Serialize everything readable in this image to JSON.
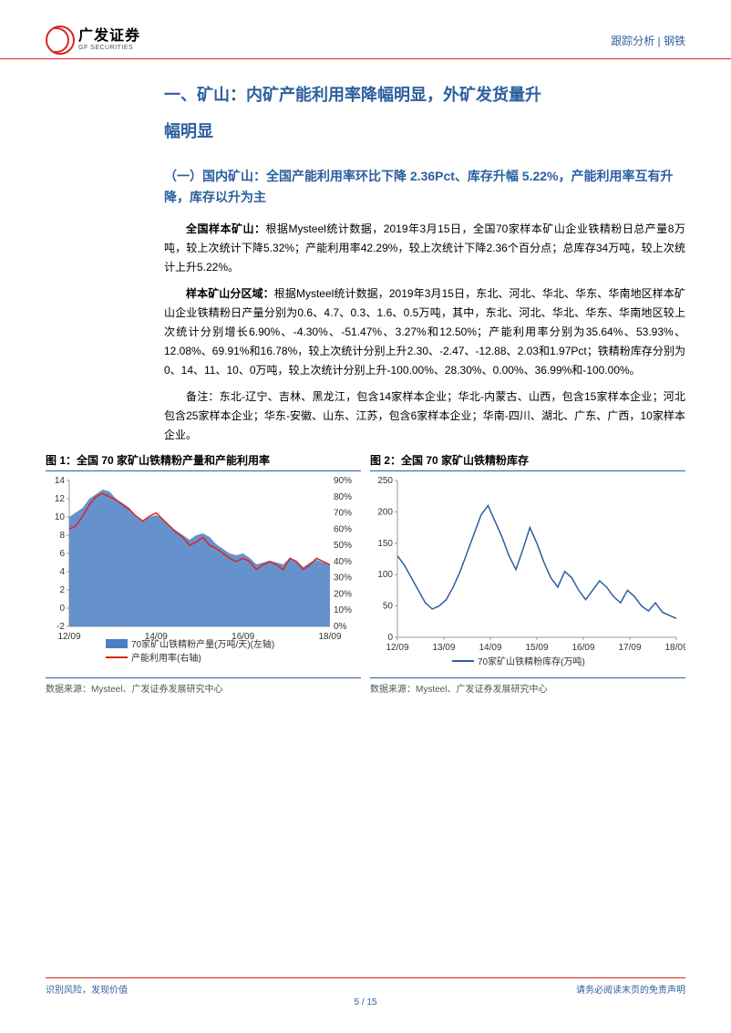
{
  "header": {
    "logo_cn": "广发证券",
    "logo_en": "GF SECURITIES",
    "right": "跟踪分析 | 钢铁"
  },
  "section_title_1": "一、矿山：内矿产能利用率降幅明显，外矿发货量升",
  "section_title_2": "幅明显",
  "subsection_title": "（一）国内矿山：全国产能利用率环比下降 2.36Pct、库存升幅 5.22%，产能利用率互有升降，库存以升为主",
  "para1_b": "全国样本矿山：",
  "para1": "根据Mysteel统计数据，2019年3月15日，全国70家样本矿山企业铁精粉日总产量8万吨，较上次统计下降5.32%；产能利用率42.29%，较上次统计下降2.36个百分点；总库存34万吨，较上次统计上升5.22%。",
  "para2_b": "样本矿山分区域：",
  "para2": "根据Mysteel统计数据，2019年3月15日，东北、河北、华北、华东、华南地区样本矿山企业铁精粉日产量分别为0.6、4.7、0.3、1.6、0.5万吨，其中，东北、河北、华北、华东、华南地区较上次统计分别增长6.90%、-4.30%、-51.47%、3.27%和12.50%；产能利用率分别为35.64%、53.93%、12.08%、69.91%和16.78%，较上次统计分别上升2.30、-2.47、-12.88、2.03和1.97Pct；铁精粉库存分别为0、14、11、10、0万吨，较上次统计分别上升-100.00%、28.30%、0.00%、36.99%和-100.00%。",
  "para3": "备注：东北-辽宁、吉林、黑龙江，包含14家样本企业；华北-内蒙古、山西，包含15家样本企业；河北包含25家样本企业；华东-安徽、山东、江苏，包含6家样本企业；华南-四川、湖北、广东、广西，10家样本企业。",
  "chart1": {
    "title": "图 1：全国 70 家矿山铁精粉产量和产能利用率",
    "source": "数据来源：Mysteel、广发证券发展研究中心",
    "type": "combo-area-line",
    "left_axis": {
      "min": -2,
      "max": 14,
      "step": 2,
      "label_pos": [
        -2,
        0,
        2,
        4,
        6,
        8,
        10,
        12,
        14
      ]
    },
    "right_axis": {
      "min": 0,
      "max": 90,
      "step": 10,
      "labels": [
        "0%",
        "10%",
        "20%",
        "30%",
        "40%",
        "50%",
        "60%",
        "70%",
        "80%",
        "90%"
      ]
    },
    "x_labels": [
      "12/09",
      "14/09",
      "16/09",
      "18/09"
    ],
    "area_color": "#4a7fc4",
    "line_color": "#d9261c",
    "legend": [
      "70家矿山铁精粉产量(万吨/天)(左轴)",
      "产能利用率(右轴)"
    ],
    "area_data": [
      10,
      10.5,
      11,
      12,
      12.5,
      13,
      12.8,
      12,
      11.5,
      11,
      10,
      9.5,
      10,
      10.2,
      9.8,
      9,
      8.5,
      8,
      7.5,
      8,
      8.2,
      7.8,
      7,
      6.5,
      6,
      5.8,
      6,
      5.5,
      4.8,
      5,
      5.2,
      5,
      4.8,
      5.5,
      5.2,
      4.5,
      5,
      5.3,
      5,
      4.8
    ],
    "line_data": [
      60,
      62,
      68,
      75,
      80,
      82,
      80,
      78,
      75,
      72,
      68,
      65,
      68,
      70,
      66,
      62,
      58,
      55,
      50,
      52,
      55,
      50,
      48,
      45,
      42,
      40,
      42,
      40,
      35,
      38,
      40,
      38,
      35,
      42,
      40,
      35,
      38,
      42,
      40,
      38
    ]
  },
  "chart2": {
    "title": "图 2：全国 70 家矿山铁精粉库存",
    "source": "数据来源：Mysteel、广发证券发展研究中心",
    "type": "line",
    "y_axis": {
      "min": 0,
      "max": 250,
      "step": 50,
      "labels": [
        "0",
        "50",
        "100",
        "150",
        "200",
        "250"
      ]
    },
    "x_labels": [
      "12/09",
      "13/09",
      "14/09",
      "15/09",
      "16/09",
      "17/09",
      "18/09"
    ],
    "line_color": "#2c5f9e",
    "legend": [
      "70家矿山铁精粉库存(万吨)"
    ],
    "data": [
      130,
      115,
      95,
      75,
      55,
      45,
      50,
      60,
      80,
      105,
      135,
      165,
      195,
      210,
      185,
      160,
      130,
      108,
      140,
      175,
      150,
      120,
      95,
      80,
      105,
      95,
      75,
      60,
      75,
      90,
      80,
      65,
      55,
      75,
      65,
      50,
      42,
      55,
      40,
      35,
      30
    ]
  },
  "footer": {
    "left": "识别风险，发现价值",
    "right": "请务必阅读末页的免责声明",
    "page": "5 / 15"
  }
}
